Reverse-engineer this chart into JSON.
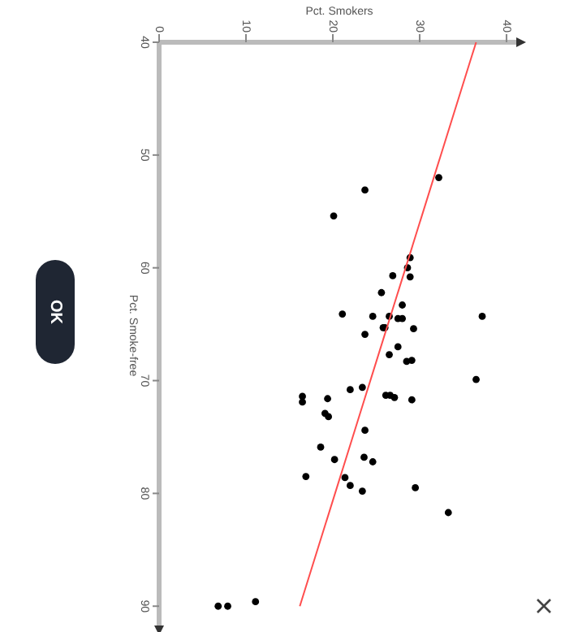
{
  "chart_data": {
    "type": "scatter",
    "xlabel": "Pct. Smokers",
    "ylabel": "Pct. Smoke-free",
    "xlim": [
      0,
      41.5
    ],
    "ylim": [
      92,
      40
    ],
    "xticks": [
      0,
      10,
      20,
      30,
      40
    ],
    "yticks": [
      40,
      50,
      60,
      70,
      80,
      90
    ],
    "marker": "circle",
    "annotations": [
      "OK"
    ],
    "series": [
      {
        "color": "#000000",
        "x": [
          32.2,
          23.7,
          20.1,
          28.9,
          28.6,
          26.9,
          28.9,
          25.6,
          28.0,
          21.1,
          24.6,
          26.5,
          37.2,
          27.5,
          28.0,
          25.8,
          26.0,
          29.3,
          23.7,
          27.5,
          26.5,
          28.5,
          29.1,
          36.5,
          23.4,
          22.0,
          26.1,
          26.6,
          27.1,
          16.5,
          16.5,
          19.4,
          29.1,
          19.1,
          19.5,
          23.7,
          18.6,
          20.2,
          23.6,
          24.6,
          16.9,
          21.4,
          22.0,
          23.4,
          29.5,
          33.3,
          6.8,
          7.9,
          11.1
        ],
        "values": [
          52.0,
          53.1,
          55.4,
          59.1,
          60.0,
          60.7,
          60.8,
          62.2,
          63.3,
          64.1,
          64.3,
          64.3,
          64.3,
          64.5,
          64.5,
          65.3,
          65.3,
          65.4,
          65.9,
          67.0,
          67.7,
          68.3,
          68.2,
          69.9,
          70.6,
          70.8,
          71.3,
          71.3,
          71.5,
          71.4,
          71.9,
          71.6,
          71.7,
          72.9,
          73.2,
          74.4,
          75.9,
          77.0,
          76.8,
          77.2,
          78.5,
          78.6,
          79.3,
          79.8,
          79.5,
          81.7,
          90.0,
          90.0,
          89.6
        ]
      },
      {
        "type": "line",
        "marker": "none",
        "color": "#ff4d4d",
        "x": [
          36.5,
          16.2
        ],
        "values": [
          40,
          90
        ]
      }
    ]
  }
}
